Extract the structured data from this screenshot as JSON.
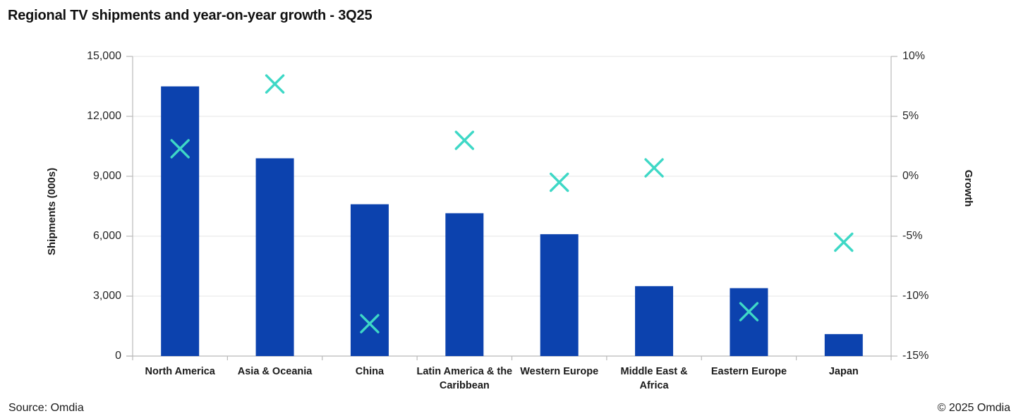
{
  "title": "Regional TV shipments and year-on-year growth - 3Q25",
  "footer": {
    "source": "Source: Omdia",
    "copyright": "© 2025 Omdia"
  },
  "colors": {
    "bar": "#0c42ae",
    "marker": "#3ed8c6",
    "grid": "#e4e4e4",
    "axis": "#b9b9b9",
    "text": "#262626"
  },
  "chart_data": {
    "type": "combo-bar-scatter",
    "title": "Regional TV shipments and year-on-year growth - 3Q25",
    "categories": [
      "North America",
      "Asia & Oceania",
      "China",
      "Latin America & the Caribbean",
      "Western Europe",
      "Middle East & Africa",
      "Eastern Europe",
      "Japan"
    ],
    "category_lines": [
      [
        "North America"
      ],
      [
        "Asia & Oceania"
      ],
      [
        "China"
      ],
      [
        "Latin America & the",
        "Caribbean"
      ],
      [
        "Western Europe"
      ],
      [
        "Middle East &",
        "Africa"
      ],
      [
        "Eastern Europe"
      ],
      [
        "Japan"
      ]
    ],
    "series": [
      {
        "name": "Shipments (000s)",
        "type": "bar",
        "axis": "left",
        "values": [
          13500,
          9900,
          7600,
          7150,
          6100,
          3500,
          3400,
          1100
        ]
      },
      {
        "name": "Growth",
        "type": "scatter-x-marker",
        "axis": "right",
        "values": [
          2.3,
          7.7,
          -12.3,
          3.0,
          -0.5,
          0.7,
          -11.3,
          -5.5
        ]
      }
    ],
    "left_axis": {
      "label": "Shipments (000s)",
      "min": 0,
      "max": 15000,
      "step": 3000,
      "tick_labels": [
        "0",
        "3,000",
        "6,000",
        "9,000",
        "12,000",
        "15,000"
      ]
    },
    "right_axis": {
      "label": "Growth",
      "min": -15,
      "max": 10,
      "step": 5,
      "tick_labels": [
        "-15%",
        "-10%",
        "-5%",
        "0%",
        "5%",
        "10%"
      ]
    },
    "grid": true,
    "legend": "none"
  }
}
